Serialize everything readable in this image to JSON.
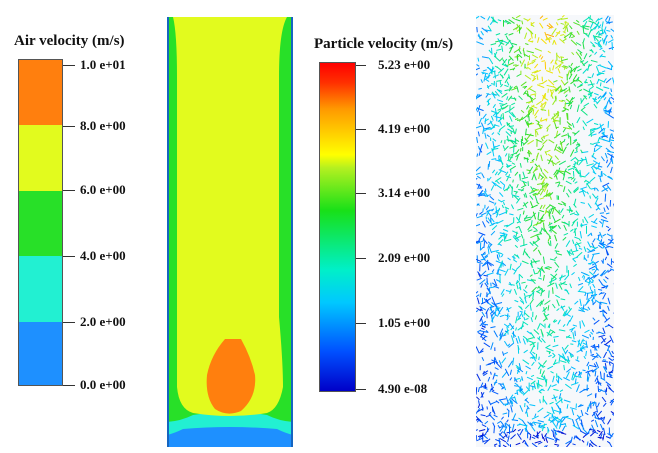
{
  "air_legend": {
    "title": "Air velocity (m/s)",
    "ticks": [
      "1.0 e+01",
      "8.0 e+00",
      "6.0 e+00",
      "4.0 e+00",
      "2.0 e+00",
      "0.0 e+00"
    ],
    "bands": [
      {
        "color": "#ff7f0e",
        "range": [
          8,
          10
        ]
      },
      {
        "color": "#e2fb1e",
        "range": [
          6,
          8
        ]
      },
      {
        "color": "#28e028",
        "range": [
          4,
          6
        ]
      },
      {
        "color": "#22f0d2",
        "range": [
          2,
          4
        ]
      },
      {
        "color": "#1e90ff",
        "range": [
          0,
          2
        ]
      }
    ]
  },
  "particle_legend": {
    "title": "Particle velocity (m/s)",
    "ticks": [
      "5.23 e+00",
      "4.19 e+00",
      "3.14 e+00",
      "2.09 e+00",
      "1.05 e+00",
      "4.90 e-08"
    ]
  },
  "colors": {
    "orange": "#ff7f0e",
    "yellow": "#e2fb1e",
    "green": "#28e028",
    "cyan": "#22f0d2",
    "blue": "#1e90ff"
  }
}
